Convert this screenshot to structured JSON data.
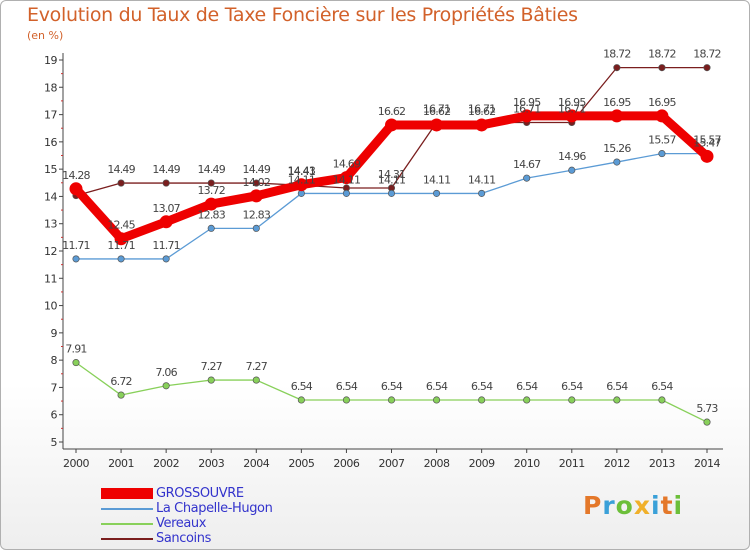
{
  "chart_data": {
    "type": "line",
    "title": "Evolution du Taux de Taxe Foncière sur les Propriétés Bâties",
    "subtitle": "(en %)",
    "xlabel": "",
    "ylabel": "",
    "ylim": [
      5,
      19
    ],
    "yticks": [
      "5",
      "6",
      "7",
      "8",
      "9",
      "10",
      "11",
      "12",
      "13",
      "14",
      "15",
      "16",
      "17",
      "18",
      "19"
    ],
    "categories": [
      "2000",
      "2001",
      "2002",
      "2003",
      "2004",
      "2005",
      "2006",
      "2007",
      "2008",
      "2009",
      "2010",
      "2011",
      "2012",
      "2013",
      "2014"
    ],
    "grid": false,
    "legend_position": "bottom-left",
    "series": [
      {
        "name": "Sancoins",
        "color": "#7a1e1e",
        "values": [
          14.03,
          14.49,
          14.49,
          14.49,
          14.49,
          14.41,
          14.31,
          14.31,
          16.71,
          16.71,
          16.71,
          16.71,
          18.72,
          18.72,
          18.72
        ],
        "labels": [
          "",
          "14.49",
          "14.49",
          "14.49",
          "14.49",
          "14.41",
          "",
          "14.31",
          "16.71",
          "16.71",
          "16.71",
          "16.71",
          "18.72",
          "18.72",
          "18.72"
        ]
      },
      {
        "name": "Vereaux",
        "color": "#88d05a",
        "values": [
          7.91,
          6.72,
          7.06,
          7.27,
          7.27,
          6.54,
          6.54,
          6.54,
          6.54,
          6.54,
          6.54,
          6.54,
          6.54,
          6.54,
          5.73
        ],
        "labels": [
          "7.91",
          "6.72",
          "7.06",
          "7.27",
          "7.27",
          "6.54",
          "6.54",
          "6.54",
          "6.54",
          "6.54",
          "6.54",
          "6.54",
          "6.54",
          "6.54",
          "5.73"
        ]
      },
      {
        "name": "La Chapelle-Hugon",
        "color": "#5b9bd5",
        "values": [
          11.71,
          11.71,
          11.71,
          12.83,
          12.83,
          14.11,
          14.11,
          14.11,
          14.11,
          14.11,
          14.67,
          14.96,
          15.26,
          15.57,
          15.57
        ],
        "labels": [
          "11.71",
          "11.71",
          "11.71",
          "12.83",
          "12.83",
          "14.11",
          "14.11",
          "14.11",
          "14.11",
          "14.11",
          "14.67",
          "14.96",
          "15.26",
          "15.57",
          "15.57"
        ]
      },
      {
        "name": "GROSSOUVRE",
        "color": "#ee0000",
        "values": [
          14.28,
          12.45,
          13.07,
          13.72,
          14.02,
          14.43,
          14.69,
          16.62,
          16.62,
          16.62,
          16.95,
          16.95,
          16.95,
          16.95,
          15.47
        ],
        "labels": [
          "14.28",
          "12.45",
          "13.07",
          "13.72",
          "14.02",
          "14.43",
          "14.69",
          "16.62",
          "16.62",
          "16.62",
          "16.95",
          "16.95",
          "16.95",
          "16.95",
          "15.47"
        ]
      }
    ]
  },
  "legend": [
    {
      "name": "GROSSOUVRE",
      "color": "#ee0000",
      "thickness": "thick"
    },
    {
      "name": "La Chapelle-Hugon",
      "color": "#5b9bd5",
      "thickness": "thin"
    },
    {
      "name": "Vereaux",
      "color": "#88d05a",
      "thickness": "thin"
    },
    {
      "name": "Sancoins",
      "color": "#7a1e1e",
      "thickness": "thin"
    }
  ],
  "logo": {
    "letters": [
      "P",
      "r",
      "o",
      "x",
      "i",
      "t",
      "i"
    ],
    "colors": [
      "#e4782a",
      "#3aa0d8",
      "#6cbf3a",
      "#f0b02a",
      "#3aa0d8",
      "#e4782a",
      "#6cbf3a"
    ]
  }
}
